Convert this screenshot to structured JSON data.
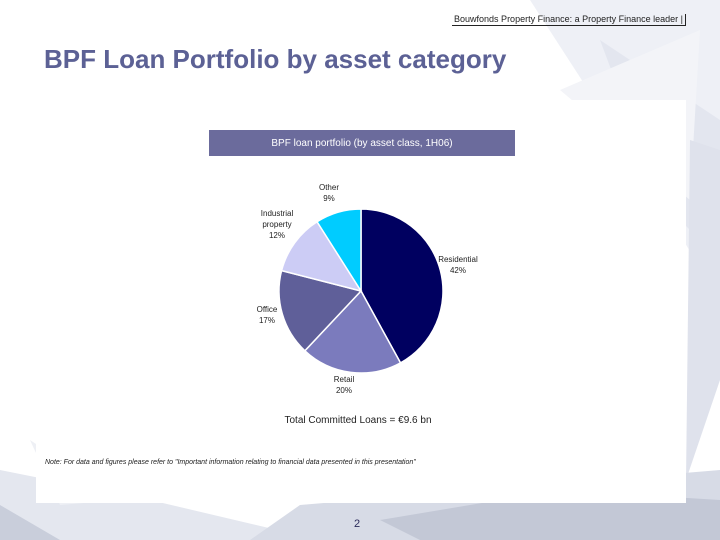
{
  "header": {
    "tagline": "Bouwfonds Property Finance: a Property Finance leader |"
  },
  "page": {
    "title": "BPF Loan Portfolio by asset category",
    "number": "2"
  },
  "chart_data": {
    "type": "pie",
    "title": "BPF loan portfolio (by asset class, 1H06)",
    "slices": [
      {
        "name": "Residential",
        "label_line1": "Residential",
        "label_line2": "42%",
        "value": 42,
        "color": "#000060"
      },
      {
        "name": "Retail",
        "label_line1": "Retail",
        "label_line2": "20%",
        "value": 20,
        "color": "#7b7bbd"
      },
      {
        "name": "Office",
        "label_line1": "Office",
        "label_line2": "17%",
        "value": 17,
        "color": "#5f5f99"
      },
      {
        "name": "Industrial property",
        "label_line1": "Industrial",
        "label_line2": "property",
        "label_line3": "12%",
        "value": 12,
        "color": "#ccccf5"
      },
      {
        "name": "Other",
        "label_line1": "Other",
        "label_line2": "9%",
        "value": 9,
        "color": "#00ccff"
      }
    ],
    "caption": "Total Committed Loans = €9.6 bn"
  },
  "note": "Note: For data and figures please refer to \"Important information relating to financial data presented in this presentation\""
}
